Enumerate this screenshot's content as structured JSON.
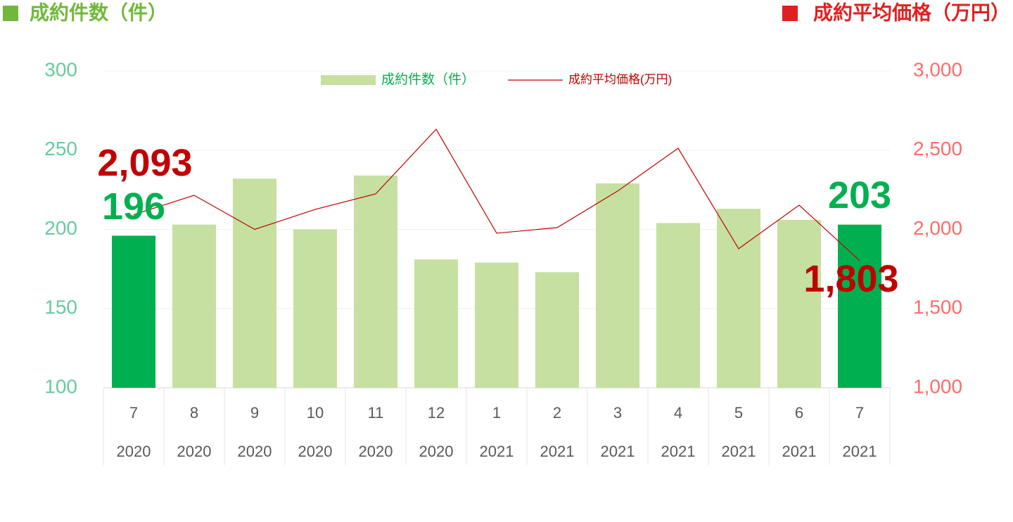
{
  "chart_data": {
    "type": "bar_line",
    "y_label": "成約件数（件）",
    "y2_label": "成約平均価格（万円）",
    "categories": [
      "7",
      "8",
      "9",
      "10",
      "11",
      "12",
      "1",
      "2",
      "3",
      "4",
      "5",
      "6",
      "7"
    ],
    "category_years": [
      "2020",
      "2020",
      "2020",
      "2020",
      "2020",
      "2020",
      "2021",
      "2021",
      "2021",
      "2021",
      "2021",
      "2021",
      "2021"
    ],
    "series": [
      {
        "name": "成約件数（件）",
        "type": "bar",
        "color": "#c5e0a0",
        "colors": [
          "#00b050",
          "#c5e0a0",
          "#c5e0a0",
          "#c5e0a0",
          "#c5e0a0",
          "#c5e0a0",
          "#c5e0a0",
          "#c5e0a0",
          "#c5e0a0",
          "#c5e0a0",
          "#c5e0a0",
          "#c5e0a0",
          "#00b050"
        ],
        "values": [
          196,
          203,
          232,
          200,
          234,
          181,
          179,
          173,
          229,
          204,
          213,
          206,
          203
        ],
        "value_labels": [
          "196",
          null,
          null,
          null,
          null,
          null,
          null,
          null,
          null,
          null,
          null,
          null,
          "203"
        ],
        "label_color": "#00b050"
      },
      {
        "name": "成約平均価格(万円)",
        "type": "line",
        "axis": "y2",
        "color": "#c00000",
        "values": [
          2093,
          2215,
          2000,
          2126,
          2224,
          2632,
          1976,
          2011,
          2242,
          2512,
          1878,
          2153,
          1803
        ],
        "value_labels": [
          "2,093",
          null,
          null,
          null,
          null,
          null,
          null,
          null,
          null,
          null,
          null,
          null,
          "1,803"
        ],
        "label_color": "#c00000"
      }
    ],
    "ylim": [
      100,
      300
    ],
    "yticks": [
      100,
      150,
      200,
      250,
      300
    ],
    "y2lim": [
      1000,
      3000
    ],
    "y2ticks": [
      {
        "value": 1000,
        "label": "1,000"
      },
      {
        "value": 1500,
        "label": "1,500"
      },
      {
        "value": 2000,
        "label": "2,000"
      },
      {
        "value": 2500,
        "label": "2,500"
      },
      {
        "value": 3000,
        "label": "3,000"
      }
    ],
    "grid": true
  }
}
